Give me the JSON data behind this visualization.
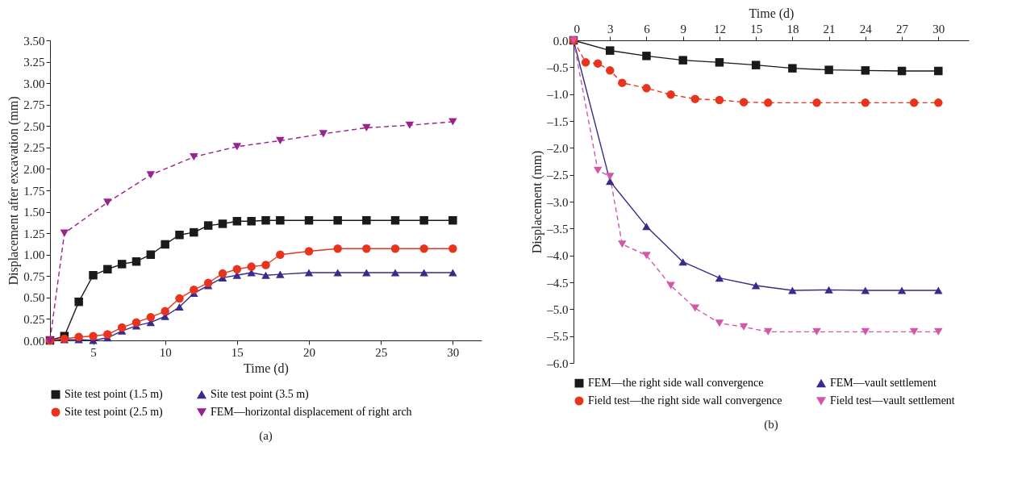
{
  "chart_data": [
    {
      "type": "line",
      "title": "(a)",
      "xlabel": "Time (d)",
      "ylabel": "Displacement after excavation (mm)",
      "legend": "bottom",
      "xlim": [
        2,
        32
      ],
      "xticks": [
        5,
        10,
        15,
        20,
        25,
        30
      ],
      "ylim": [
        0,
        3.5
      ],
      "yticks": [
        {
          "value": 0,
          "label": "0.00"
        },
        {
          "value": 0.25,
          "label": "0.25"
        },
        {
          "value": 0.5,
          "label": "0.50"
        },
        {
          "value": 0.75,
          "label": "0.75"
        },
        {
          "value": 1,
          "label": "1.00"
        },
        {
          "value": 1.25,
          "label": "1.25"
        },
        {
          "value": 1.5,
          "label": "1.50"
        },
        {
          "value": 1.75,
          "label": "1.75"
        },
        {
          "value": 2,
          "label": "2.00"
        },
        {
          "value": 2.25,
          "label": "2.25"
        },
        {
          "value": 2.5,
          "label": "2.50"
        },
        {
          "value": 2.75,
          "label": "2.75"
        },
        {
          "value": 3,
          "label": "3.00"
        },
        {
          "value": 3.25,
          "label": "3.25"
        },
        {
          "value": 3.5,
          "label": "3.50"
        }
      ],
      "series": [
        {
          "name": "Site test point (1.5 m)",
          "color": "#1a1a1a",
          "marker": "square",
          "line_style": "solid",
          "x": [
            2,
            3,
            4,
            5,
            6,
            7,
            8,
            9,
            10,
            11,
            12,
            13,
            14,
            15,
            16,
            17,
            18,
            20,
            22,
            24,
            26,
            28,
            30
          ],
          "values": [
            0,
            0.05,
            0.45,
            0.76,
            0.83,
            0.89,
            0.92,
            1.0,
            1.12,
            1.23,
            1.26,
            1.34,
            1.36,
            1.39,
            1.39,
            1.4,
            1.4,
            1.4,
            1.4,
            1.4,
            1.4,
            1.4,
            1.4
          ]
        },
        {
          "name": "Site test point (3.5 m)",
          "color": "#3a2a8c",
          "marker": "triangle",
          "line_style": "solid",
          "x": [
            2,
            3,
            4,
            5,
            6,
            7,
            8,
            9,
            10,
            11,
            12,
            13,
            14,
            15,
            16,
            17,
            18,
            20,
            22,
            24,
            26,
            28,
            30
          ],
          "values": [
            0,
            0.01,
            0.01,
            0,
            0.03,
            0.11,
            0.17,
            0.21,
            0.28,
            0.39,
            0.55,
            0.64,
            0.73,
            0.76,
            0.79,
            0.76,
            0.77,
            0.79,
            0.79,
            0.79,
            0.79,
            0.79,
            0.79
          ]
        },
        {
          "name": "Site test point (2.5 m)",
          "color": "#e8341c",
          "marker": "circle",
          "line_style": "solid",
          "x": [
            2,
            3,
            4,
            5,
            6,
            7,
            8,
            9,
            10,
            11,
            12,
            13,
            14,
            15,
            16,
            17,
            18,
            20,
            22,
            24,
            26,
            28,
            30
          ],
          "values": [
            0,
            0.02,
            0.04,
            0.05,
            0.07,
            0.15,
            0.21,
            0.27,
            0.34,
            0.49,
            0.59,
            0.67,
            0.78,
            0.83,
            0.86,
            0.88,
            1.0,
            1.04,
            1.07,
            1.07,
            1.07,
            1.07,
            1.07
          ]
        },
        {
          "name": "FEM—horizontal displacement of right arch",
          "color": "#9b2190",
          "marker": "triangle-down",
          "line_style": "dashed",
          "x": [
            2,
            3,
            6,
            9,
            12,
            15,
            18,
            21,
            24,
            27,
            30
          ],
          "values": [
            0,
            1.25,
            1.61,
            1.93,
            2.14,
            2.26,
            2.33,
            2.41,
            2.48,
            2.51,
            2.55
          ]
        }
      ]
    },
    {
      "type": "line",
      "title": "(b)",
      "xlabel": "Time (d)",
      "ylabel": "Displacement (mm)",
      "legend": "bottom",
      "xlim": [
        0,
        32.5
      ],
      "xticks": [
        0,
        3,
        6,
        9,
        12,
        15,
        18,
        21,
        24,
        27,
        30
      ],
      "ylim": [
        -6,
        0
      ],
      "yticks": [
        {
          "value": 0,
          "label": "0.0"
        },
        {
          "value": -0.5,
          "label": "–0.5"
        },
        {
          "value": -1,
          "label": "–1.0"
        },
        {
          "value": -1.5,
          "label": "–1.5"
        },
        {
          "value": -2,
          "label": "–2.0"
        },
        {
          "value": -2.5,
          "label": "–2.5"
        },
        {
          "value": -3,
          "label": "–3.0"
        },
        {
          "value": -3.5,
          "label": "–3.5"
        },
        {
          "value": -4,
          "label": "–4.0"
        },
        {
          "value": -4.5,
          "label": "–4.5"
        },
        {
          "value": -5,
          "label": "–5.0"
        },
        {
          "value": -5.5,
          "label": "–5.5"
        },
        {
          "value": -6,
          "label": "–6.0"
        }
      ],
      "series": [
        {
          "name": "FEM—the right side wall convergence",
          "color": "#1a1a1a",
          "marker": "square",
          "line_style": "solid",
          "x": [
            0,
            3,
            6,
            9,
            12,
            15,
            18,
            21,
            24,
            27,
            30
          ],
          "values": [
            0,
            -0.19,
            -0.29,
            -0.37,
            -0.41,
            -0.46,
            -0.52,
            -0.55,
            -0.56,
            -0.57,
            -0.57
          ]
        },
        {
          "name": "FEM—vault settlement",
          "color": "#3a2a8c",
          "marker": "triangle",
          "line_style": "solid",
          "x": [
            0,
            3,
            6,
            9,
            12,
            15,
            18,
            21,
            24,
            27,
            30
          ],
          "values": [
            0,
            -2.62,
            -3.46,
            -4.12,
            -4.42,
            -4.56,
            -4.65,
            -4.64,
            -4.65,
            -4.65,
            -4.65
          ]
        },
        {
          "name": "Field test—the right side wall convergence",
          "color": "#e8341c",
          "marker": "circle",
          "line_style": "dashed",
          "x": [
            0,
            1,
            2,
            3,
            4,
            6,
            8,
            10,
            12,
            14,
            16,
            20,
            24,
            28,
            30
          ],
          "values": [
            0,
            -0.41,
            -0.43,
            -0.56,
            -0.79,
            -0.89,
            -1.01,
            -1.09,
            -1.11,
            -1.15,
            -1.16,
            -1.16,
            -1.16,
            -1.16,
            -1.16
          ]
        },
        {
          "name": "Field test—vault settlement",
          "color": "#d257a8",
          "marker": "triangle-down",
          "line_style": "dashed",
          "x": [
            0,
            2,
            3,
            4,
            6,
            8,
            10,
            12,
            14,
            16,
            20,
            24,
            28,
            30
          ],
          "values": [
            0,
            -2.42,
            -2.53,
            -3.79,
            -4.0,
            -4.56,
            -4.98,
            -5.26,
            -5.33,
            -5.42,
            -5.42,
            -5.42,
            -5.42,
            -5.42
          ]
        }
      ]
    }
  ]
}
